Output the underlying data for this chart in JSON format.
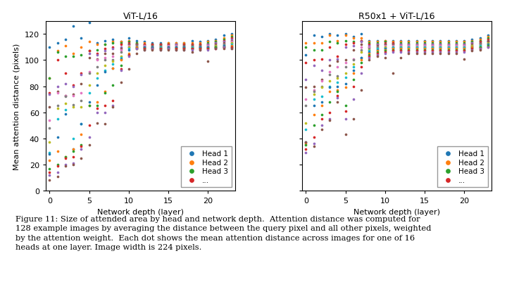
{
  "title_left": "ViT-L/16",
  "title_right": "R50x1 + ViT-L/16",
  "xlabel": "Network depth (layer)",
  "ylabel": "Mean attention distance (pixels)",
  "xlim": [
    -0.5,
    23.5
  ],
  "ylim": [
    0,
    130
  ],
  "yticks": [
    0,
    20,
    40,
    60,
    80,
    100,
    120
  ],
  "xticks": [
    0,
    5,
    10,
    15,
    20
  ],
  "head_colors": [
    "#1f77b4",
    "#ff7f0e",
    "#2ca02c",
    "#d62728",
    "#9467bd",
    "#8c564b",
    "#e377c2",
    "#7f7f7f",
    "#bcbd22",
    "#17becf",
    "#1f77b4",
    "#ff7f0e",
    "#2ca02c",
    "#d62728",
    "#9467bd",
    "#8c564b"
  ],
  "legend_labels": [
    "Head 1",
    "Head 2",
    "Head 3",
    "..."
  ],
  "legend_colors": [
    "#1f77b4",
    "#ff7f0e",
    "#2ca02c",
    "#d62728"
  ],
  "caption_line1": "Figure 11: Size of attended area by head and network depth.  Attention distance was computed for",
  "caption_line2": "128 example images by averaging the distance between the query pixel and all other pixels, weighted",
  "caption_line3": "by the attention weight.  Each dot shows the mean attention distance across images for one of 16",
  "caption_line4": "heads at one layer. Image width is 224 pixels.",
  "figsize": [
    7.2,
    4.39
  ],
  "dpi": 100,
  "vit_data": {
    "0": [
      110,
      86,
      86,
      75,
      74,
      64,
      54,
      48,
      37,
      29,
      28,
      23,
      17,
      14,
      12,
      8
    ],
    "1": [
      113,
      107,
      106,
      100,
      80,
      76,
      75,
      65,
      63,
      55,
      41,
      30,
      20,
      19,
      14,
      11
    ],
    "2": [
      116,
      111,
      103,
      90,
      82,
      73,
      73,
      72,
      67,
      62,
      59,
      26,
      26,
      25,
      20,
      19
    ],
    "3": [
      126,
      105,
      103,
      81,
      80,
      74,
      73,
      66,
      64,
      40,
      32,
      32,
      30,
      26,
      21,
      20
    ],
    "4": [
      117,
      110,
      104,
      90,
      89,
      82,
      75,
      69,
      64,
      51,
      51,
      43,
      35,
      34,
      32,
      25
    ],
    "5": [
      129,
      114,
      107,
      107,
      105,
      102,
      91,
      90,
      81,
      75,
      68,
      65,
      65,
      50,
      41,
      35
    ],
    "6": [
      113,
      112,
      108,
      105,
      104,
      101,
      100,
      95,
      90,
      86,
      81,
      68,
      65,
      63,
      60,
      52
    ],
    "7": [
      115,
      112,
      112,
      109,
      107,
      105,
      102,
      100,
      96,
      92,
      91,
      76,
      75,
      65,
      60,
      51
    ],
    "8": [
      116,
      114,
      113,
      110,
      109,
      105,
      103,
      100,
      99,
      97,
      94,
      94,
      81,
      69,
      65,
      64
    ],
    "9": [
      114,
      114,
      113,
      112,
      110,
      109,
      108,
      106,
      103,
      102,
      101,
      100,
      96,
      93,
      92,
      83
    ],
    "10": [
      117,
      115,
      114,
      113,
      112,
      112,
      111,
      110,
      110,
      109,
      108,
      105,
      104,
      104,
      103,
      93
    ],
    "11": [
      115,
      113,
      113,
      112,
      112,
      112,
      111,
      111,
      110,
      110,
      110,
      110,
      109,
      109,
      109,
      105
    ],
    "12": [
      114,
      113,
      112,
      112,
      111,
      111,
      111,
      110,
      110,
      110,
      110,
      109,
      109,
      109,
      108,
      108
    ],
    "13": [
      113,
      112,
      112,
      112,
      111,
      111,
      110,
      110,
      110,
      110,
      110,
      109,
      109,
      109,
      109,
      108
    ],
    "14": [
      113,
      112,
      112,
      112,
      111,
      111,
      110,
      110,
      110,
      110,
      109,
      109,
      109,
      109,
      108,
      108
    ],
    "15": [
      113,
      113,
      112,
      112,
      111,
      111,
      111,
      110,
      110,
      110,
      110,
      109,
      109,
      109,
      109,
      108
    ],
    "16": [
      113,
      113,
      112,
      112,
      112,
      111,
      111,
      110,
      110,
      110,
      110,
      109,
      109,
      109,
      108,
      108
    ],
    "17": [
      113,
      113,
      112,
      112,
      111,
      111,
      110,
      110,
      110,
      110,
      110,
      109,
      109,
      109,
      108,
      108
    ],
    "18": [
      115,
      113,
      112,
      112,
      111,
      111,
      110,
      110,
      110,
      110,
      109,
      109,
      109,
      109,
      108,
      106
    ],
    "19": [
      114,
      113,
      112,
      112,
      111,
      111,
      110,
      110,
      110,
      110,
      110,
      109,
      109,
      109,
      108,
      108
    ],
    "20": [
      115,
      114,
      113,
      112,
      112,
      111,
      111,
      110,
      110,
      110,
      110,
      109,
      109,
      109,
      108,
      99
    ],
    "21": [
      116,
      115,
      114,
      113,
      113,
      112,
      111,
      111,
      111,
      110,
      110,
      110,
      110,
      109,
      109,
      109
    ],
    "22": [
      119,
      117,
      116,
      115,
      114,
      113,
      112,
      112,
      111,
      111,
      111,
      110,
      110,
      110,
      110,
      109
    ],
    "23": [
      120,
      119,
      118,
      117,
      116,
      115,
      114,
      113,
      113,
      112,
      111,
      111,
      110,
      110,
      109,
      109
    ]
  },
  "r50_data": {
    "0": [
      104,
      113,
      110,
      98,
      85,
      79,
      70,
      65,
      52,
      47,
      37,
      36,
      35,
      32,
      29,
      37
    ],
    "1": [
      119,
      113,
      108,
      100,
      96,
      80,
      77,
      76,
      74,
      70,
      65,
      58,
      50,
      41,
      36,
      34
    ],
    "2": [
      118,
      113,
      108,
      101,
      92,
      85,
      84,
      80,
      79,
      72,
      68,
      65,
      58,
      55,
      50,
      47
    ],
    "3": [
      120,
      119,
      114,
      110,
      100,
      96,
      91,
      89,
      84,
      80,
      79,
      76,
      68,
      60,
      55,
      54
    ],
    "4": [
      119,
      115,
      113,
      103,
      101,
      99,
      95,
      88,
      86,
      83,
      80,
      77,
      76,
      73,
      71,
      68
    ],
    "5": [
      120,
      119,
      115,
      112,
      110,
      100,
      98,
      95,
      90,
      87,
      82,
      79,
      65,
      61,
      55,
      43
    ],
    "6": [
      118,
      117,
      114,
      113,
      111,
      108,
      101,
      100,
      97,
      95,
      92,
      90,
      85,
      80,
      70,
      55
    ],
    "7": [
      120,
      117,
      115,
      115,
      114,
      112,
      110,
      108,
      106,
      102,
      102,
      100,
      98,
      95,
      90,
      77
    ],
    "8": [
      115,
      114,
      113,
      112,
      111,
      110,
      110,
      109,
      108,
      107,
      106,
      105,
      104,
      103,
      102,
      100
    ],
    "9": [
      115,
      114,
      113,
      112,
      112,
      111,
      110,
      110,
      109,
      109,
      108,
      107,
      106,
      105,
      104,
      103
    ],
    "10": [
      115,
      115,
      114,
      113,
      112,
      112,
      111,
      110,
      110,
      109,
      109,
      108,
      107,
      106,
      105,
      102
    ],
    "11": [
      115,
      114,
      113,
      113,
      112,
      112,
      111,
      110,
      110,
      110,
      109,
      109,
      108,
      107,
      106,
      90
    ],
    "12": [
      115,
      114,
      113,
      112,
      112,
      111,
      111,
      110,
      110,
      110,
      109,
      109,
      108,
      107,
      106,
      102
    ],
    "13": [
      115,
      114,
      113,
      112,
      112,
      111,
      111,
      110,
      110,
      110,
      109,
      109,
      108,
      107,
      106,
      105
    ],
    "14": [
      115,
      114,
      113,
      112,
      112,
      111,
      111,
      110,
      110,
      110,
      109,
      109,
      108,
      107,
      106,
      105
    ],
    "15": [
      115,
      114,
      113,
      112,
      112,
      111,
      111,
      110,
      110,
      110,
      109,
      109,
      108,
      107,
      106,
      105
    ],
    "16": [
      115,
      114,
      113,
      112,
      112,
      111,
      111,
      110,
      110,
      110,
      109,
      109,
      108,
      107,
      106,
      105
    ],
    "17": [
      115,
      114,
      113,
      112,
      112,
      111,
      111,
      110,
      110,
      110,
      109,
      109,
      108,
      107,
      106,
      105
    ],
    "18": [
      115,
      114,
      113,
      112,
      112,
      111,
      111,
      110,
      110,
      110,
      109,
      109,
      108,
      107,
      106,
      105
    ],
    "19": [
      115,
      114,
      113,
      112,
      112,
      111,
      111,
      110,
      110,
      110,
      109,
      109,
      108,
      107,
      106,
      105
    ],
    "20": [
      115,
      114,
      113,
      112,
      112,
      111,
      111,
      110,
      110,
      110,
      109,
      109,
      108,
      107,
      106,
      101
    ],
    "21": [
      116,
      115,
      114,
      113,
      113,
      112,
      111,
      111,
      111,
      110,
      110,
      110,
      109,
      109,
      108,
      107
    ],
    "22": [
      117,
      116,
      115,
      114,
      113,
      113,
      112,
      112,
      111,
      111,
      110,
      110,
      110,
      109,
      109,
      108
    ],
    "23": [
      119,
      118,
      117,
      116,
      115,
      114,
      114,
      113,
      113,
      112,
      112,
      111,
      111,
      110,
      110,
      115
    ]
  }
}
